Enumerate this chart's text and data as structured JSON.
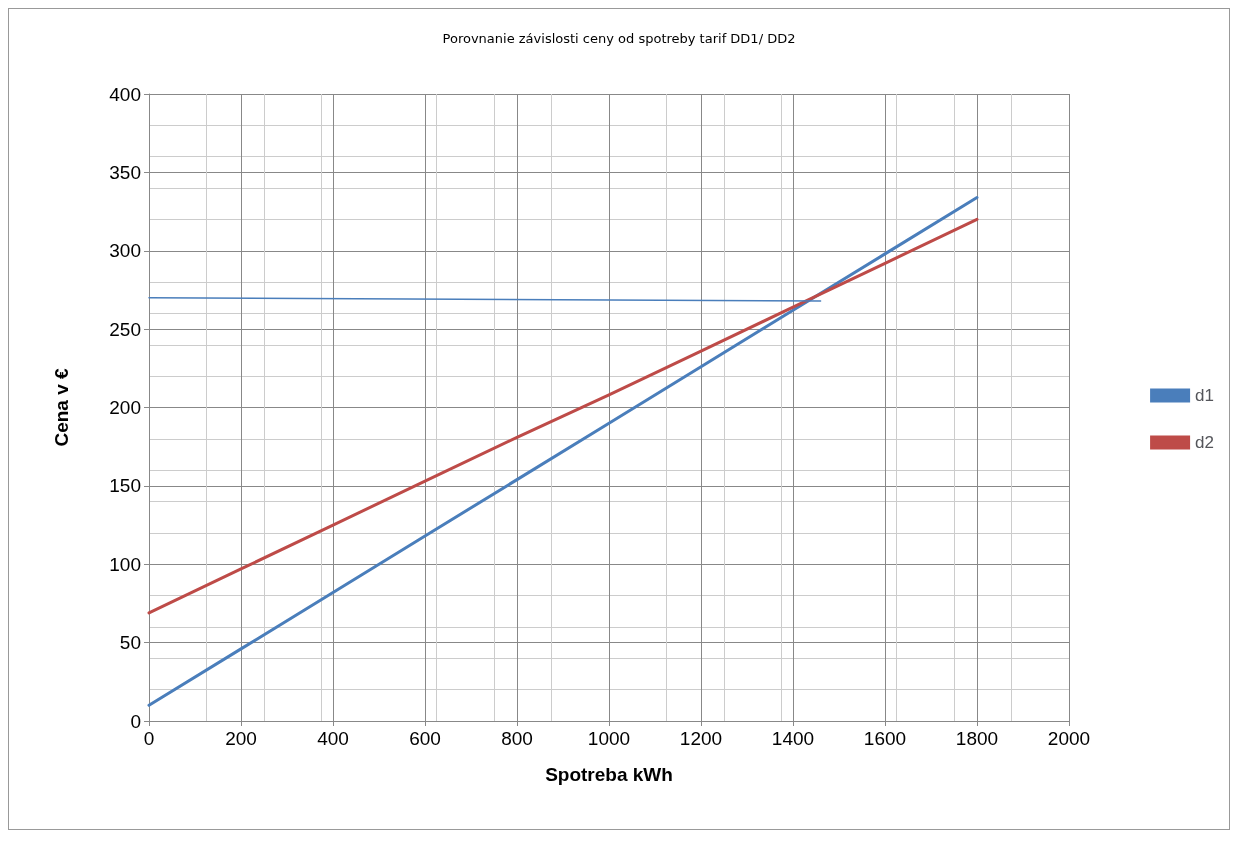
{
  "chart_data": {
    "type": "line",
    "title": "Porovnanie závislosti ceny od spotreby tarif DD1/ DD2",
    "xlabel": "Spotreba kWh",
    "ylabel": "Cena v €",
    "series": [
      {
        "name": "d1",
        "color": "#4a7ebb",
        "x": [
          0,
          200,
          400,
          600,
          800,
          1000,
          1200,
          1400,
          1600,
          1800
        ],
        "values": [
          10,
          46,
          82,
          118,
          154,
          190,
          226,
          262,
          298,
          334
        ]
      },
      {
        "name": "d2",
        "color": "#be4b48",
        "x": [
          0,
          200,
          400,
          600,
          800,
          1000,
          1200,
          1400,
          1600,
          1800
        ],
        "values": [
          69,
          97,
          125,
          153,
          181,
          208,
          236,
          264,
          292,
          320
        ]
      },
      {
        "color": "#4a7ebb",
        "x": [
          0,
          1460
        ],
        "values": [
          270,
          268
        ]
      }
    ],
    "xlim": [
      0,
      2000
    ],
    "xticks": [
      0,
      200,
      400,
      600,
      800,
      1000,
      1200,
      1400,
      1600,
      1800,
      2000
    ],
    "ylim": [
      0,
      400
    ],
    "yticks": [
      0,
      50,
      100,
      150,
      200,
      250,
      300,
      350,
      400
    ],
    "grid": true,
    "legend": "right",
    "marker": "none",
    "line_style": "solid"
  }
}
